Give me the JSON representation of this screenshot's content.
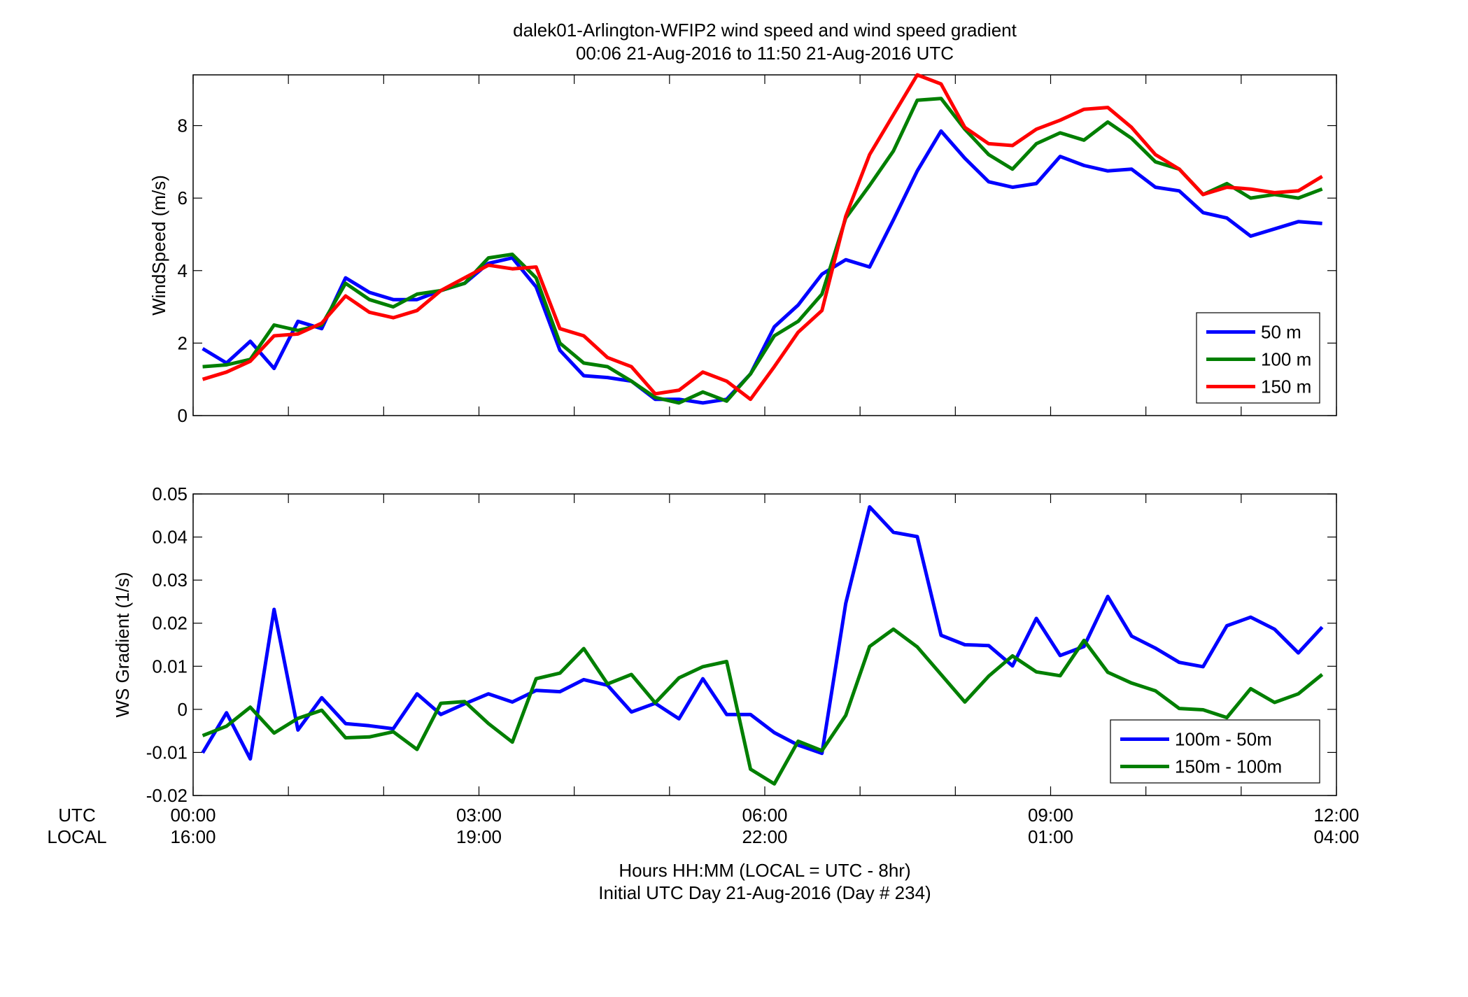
{
  "figure": {
    "title_line1": "dalek01-Arlington-WFIP2  wind speed and wind speed gradient",
    "title_line2": "00:06 21-Aug-2016 to 11:50 21-Aug-2016  UTC",
    "xlabel_line1": "Hours HH:MM  (LOCAL = UTC - 8hr)",
    "xlabel_line2": "Initial UTC Day 21-Aug-2016 (Day # 234)",
    "utc_row_label": "UTC",
    "local_row_label": "LOCAL",
    "x_ticks": [
      {
        "value": 0,
        "utc": "00:00",
        "local": "16:00"
      },
      {
        "value": 3,
        "utc": "03:00",
        "local": "19:00"
      },
      {
        "value": 6,
        "utc": "06:00",
        "local": "22:00"
      },
      {
        "value": 9,
        "utc": "09:00",
        "local": "01:00"
      },
      {
        "value": 12,
        "utc": "12:00",
        "local": "04:00"
      }
    ],
    "colors": {
      "blue": "#0000ff",
      "green": "#007f00",
      "red": "#ff0000"
    }
  },
  "chart_data": [
    {
      "type": "line",
      "ylabel": "WindSpeed (m/s)",
      "xlim": [
        0,
        12
      ],
      "ylim": [
        0,
        9.4
      ],
      "yticks": [
        0,
        2,
        4,
        6,
        8
      ],
      "ytick_labels": [
        "0",
        "2",
        "4",
        "6",
        "8"
      ],
      "grid": false,
      "legend_position": "bottom-right",
      "x": [
        0.1,
        0.35,
        0.6,
        0.85,
        1.1,
        1.35,
        1.6,
        1.85,
        2.1,
        2.35,
        2.6,
        2.85,
        3.1,
        3.35,
        3.6,
        3.85,
        4.1,
        4.35,
        4.6,
        4.85,
        5.1,
        5.35,
        5.6,
        5.85,
        6.1,
        6.35,
        6.6,
        6.85,
        7.1,
        7.35,
        7.6,
        7.85,
        8.1,
        8.35,
        8.6,
        8.85,
        9.1,
        9.35,
        9.6,
        9.85,
        10.1,
        10.35,
        10.6,
        10.85,
        11.1,
        11.35,
        11.6,
        11.85
      ],
      "series": [
        {
          "name": "50 m",
          "color": "#0000ff",
          "values": [
            1.85,
            1.45,
            2.05,
            1.3,
            2.6,
            2.4,
            3.8,
            3.4,
            3.2,
            3.2,
            3.45,
            3.65,
            4.2,
            4.35,
            3.55,
            1.8,
            1.1,
            1.05,
            0.95,
            0.45,
            0.45,
            0.35,
            0.45,
            1.15,
            2.45,
            3.05,
            3.9,
            4.3,
            4.1,
            5.4,
            6.75,
            7.85,
            7.1,
            6.45,
            6.3,
            6.4,
            7.15,
            6.9,
            6.75,
            6.8,
            6.3,
            6.2,
            5.6,
            5.45,
            4.95,
            5.15,
            5.35,
            5.3
          ]
        },
        {
          "name": "100 m",
          "color": "#007f00",
          "values": [
            1.35,
            1.4,
            1.55,
            2.5,
            2.35,
            2.5,
            3.65,
            3.2,
            3.0,
            3.35,
            3.45,
            3.65,
            4.35,
            4.45,
            3.8,
            2.0,
            1.45,
            1.35,
            0.95,
            0.5,
            0.35,
            0.65,
            0.4,
            1.15,
            2.2,
            2.6,
            3.35,
            5.45,
            6.35,
            7.3,
            8.7,
            8.75,
            7.9,
            7.2,
            6.8,
            7.5,
            7.8,
            7.6,
            8.1,
            7.65,
            7.0,
            6.8,
            6.1,
            6.4,
            6.0,
            6.1,
            6.0,
            6.25
          ]
        },
        {
          "name": "150 m",
          "color": "#ff0000",
          "values": [
            1.0,
            1.2,
            1.5,
            2.2,
            2.25,
            2.55,
            3.3,
            2.85,
            2.7,
            2.9,
            3.45,
            3.8,
            4.15,
            4.05,
            4.1,
            2.4,
            2.2,
            1.6,
            1.35,
            0.6,
            0.7,
            1.2,
            0.95,
            0.45,
            1.35,
            2.3,
            2.9,
            5.5,
            7.2,
            8.3,
            9.4,
            9.15,
            7.95,
            7.5,
            7.45,
            7.9,
            8.15,
            8.45,
            8.5,
            7.95,
            7.2,
            6.8,
            6.1,
            6.3,
            6.25,
            6.15,
            6.2,
            6.6
          ]
        }
      ]
    },
    {
      "type": "line",
      "ylabel": "WS Gradient (1/s)",
      "xlim": [
        0,
        12
      ],
      "ylim": [
        -0.02,
        0.05
      ],
      "yticks": [
        -0.02,
        -0.01,
        0,
        0.01,
        0.02,
        0.03,
        0.04,
        0.05
      ],
      "ytick_labels": [
        "-0.02",
        "-0.01",
        "0",
        "0.01",
        "0.02",
        "0.03",
        "0.04",
        "0.05"
      ],
      "grid": false,
      "legend_position": "bottom-right",
      "x": [
        0.1,
        0.35,
        0.6,
        0.85,
        1.1,
        1.35,
        1.6,
        1.85,
        2.1,
        2.35,
        2.6,
        2.85,
        3.1,
        3.35,
        3.6,
        3.85,
        4.1,
        4.35,
        4.6,
        4.85,
        5.1,
        5.35,
        5.6,
        5.85,
        6.1,
        6.35,
        6.6,
        6.85,
        7.1,
        7.35,
        7.6,
        7.85,
        8.1,
        8.35,
        8.6,
        8.85,
        9.1,
        9.35,
        9.6,
        9.85,
        10.1,
        10.35,
        10.6,
        10.85,
        11.1,
        11.35,
        11.6,
        11.85
      ],
      "series": [
        {
          "name": "100m - 50m",
          "color": "#0000ff",
          "values": [
            -0.0101,
            -0.0008,
            -0.0115,
            0.0232,
            -0.0048,
            0.0027,
            -0.0033,
            -0.0038,
            -0.0045,
            0.0036,
            -0.0012,
            0.0013,
            0.0036,
            0.0017,
            0.0044,
            0.0041,
            0.0069,
            0.0056,
            -0.0006,
            0.0014,
            -0.0022,
            0.0071,
            -0.0012,
            -0.0012,
            -0.0054,
            -0.0083,
            -0.0102,
            0.0246,
            0.047,
            0.0411,
            0.0401,
            0.0172,
            0.015,
            0.0148,
            0.0101,
            0.0211,
            0.0125,
            0.0146,
            0.0262,
            0.017,
            0.0142,
            0.0109,
            0.0099,
            0.0194,
            0.0214,
            0.0186,
            0.0131,
            0.0191
          ]
        },
        {
          "name": "150m - 100m",
          "color": "#007f00",
          "values": [
            -0.0061,
            -0.0039,
            0.0005,
            -0.0055,
            -0.0021,
            -0.0002,
            -0.0066,
            -0.0064,
            -0.0052,
            -0.0093,
            0.0014,
            0.0018,
            -0.0033,
            -0.0076,
            0.0071,
            0.0084,
            0.0141,
            0.0059,
            0.0081,
            0.0015,
            0.0073,
            0.0099,
            0.0111,
            -0.0139,
            -0.0173,
            -0.0074,
            -0.0096,
            -0.0014,
            0.0146,
            0.0186,
            0.0145,
            0.0081,
            0.0017,
            0.0077,
            0.0124,
            0.0087,
            0.0078,
            0.016,
            0.0086,
            0.0061,
            0.0043,
            0.0002,
            -0.0001,
            -0.0019,
            0.0048,
            0.0016,
            0.0036,
            0.0081
          ]
        }
      ]
    }
  ]
}
